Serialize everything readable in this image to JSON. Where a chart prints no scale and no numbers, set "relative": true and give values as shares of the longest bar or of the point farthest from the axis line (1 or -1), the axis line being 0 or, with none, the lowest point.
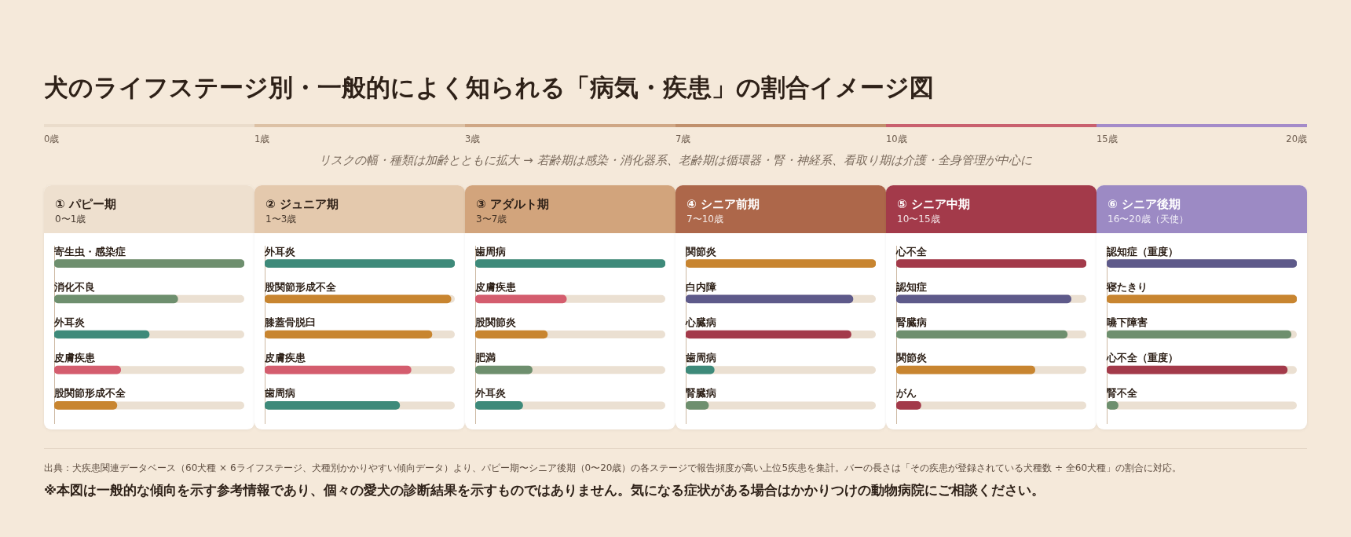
{
  "chart_data": [
    {
      "type": "other",
      "title": "犬のライフステージ別・一般的によく知られる「病気・疾患」の割合イメージ図",
      "subtitle": "リスクの幅・種類は加齢とともに拡大 → 若齢期は感染・消化器系、老齢期は循環器・腎・神経系、看取り期は介護・全身管理が中心に",
      "categories": [
        "0歳",
        "1歳",
        "3歳",
        "7歳",
        "10歳",
        "15歳",
        "20歳"
      ],
      "colors": [
        "#eadccb",
        "#dcc1a5",
        "#cfa785",
        "#c0906c",
        "#c9606e",
        "#a48bc9"
      ],
      "annotations": [
        "出典：犬疾患関連データベース（60犬種 × 6ライフステージ、犬種別かかりやすい傾向データ）より、パピー期〜シニア後期（0〜20歳）の各ステージで報告頻度が高い上位5疾患を集計。バーの長さは「その疾患が登録されている犬種数 ÷ 全60犬種」の割合に対応。",
        "※本図は一般的な傾向を示す参考情報であり、個々の愛犬の診断結果を示すものではありません。気になる症状がある場合はかかりつけの動物病院にご相談ください。"
      ]
    },
    {
      "type": "bar",
      "orientation": "horizontal",
      "relative": true,
      "title": "① パピー期",
      "subtitle": "0〜1歳",
      "categories": [
        "寄生虫・感染症",
        "消化不良",
        "外耳炎",
        "皮膚疾患",
        "股関節形成不全"
      ],
      "values": [
        1,
        0.65,
        0.5,
        0.35,
        0.33
      ],
      "colors": [
        "#6e8f6e",
        "#6e8f6e",
        "#3e8a7a",
        "#d45d6e",
        "#c88530"
      ]
    },
    {
      "type": "bar",
      "orientation": "horizontal",
      "relative": true,
      "title": "② ジュニア期",
      "subtitle": "1〜3歳",
      "categories": [
        "外耳炎",
        "股関節形成不全",
        "膝蓋骨脱臼",
        "皮膚疾患",
        "歯周病"
      ],
      "values": [
        1,
        0.98,
        0.88,
        0.77,
        0.71
      ],
      "colors": [
        "#3e8a7a",
        "#c88530",
        "#c88530",
        "#d45d6e",
        "#3e8a7a"
      ]
    },
    {
      "type": "bar",
      "orientation": "horizontal",
      "relative": true,
      "title": "③ アダルト期",
      "subtitle": "3〜7歳",
      "categories": [
        "歯周病",
        "皮膚疾患",
        "股関節炎",
        "肥満",
        "外耳炎"
      ],
      "values": [
        1,
        0.48,
        0.38,
        0.3,
        0.25
      ],
      "colors": [
        "#3e8a7a",
        "#d45d6e",
        "#c88530",
        "#6e8f6e",
        "#3e8a7a"
      ]
    },
    {
      "type": "bar",
      "orientation": "horizontal",
      "relative": true,
      "title": "④ シニア前期",
      "subtitle": "7〜10歳",
      "categories": [
        "関節炎",
        "白内障",
        "心臓病",
        "歯周病",
        "腎臓病"
      ],
      "values": [
        1,
        0.88,
        0.87,
        0.15,
        0.12
      ],
      "colors": [
        "#c88530",
        "#5e5a8a",
        "#a33a4a",
        "#3e8a7a",
        "#6e8f6e"
      ]
    },
    {
      "type": "bar",
      "orientation": "horizontal",
      "relative": true,
      "title": "⑤ シニア中期",
      "subtitle": "10〜15歳",
      "categories": [
        "心不全",
        "認知症",
        "腎臓病",
        "関節炎",
        "がん"
      ],
      "values": [
        1,
        0.92,
        0.9,
        0.73,
        0.13
      ],
      "colors": [
        "#a33a4a",
        "#5e5a8a",
        "#6e8f6e",
        "#c88530",
        "#a33a4a"
      ]
    },
    {
      "type": "bar",
      "orientation": "horizontal",
      "relative": true,
      "title": "⑥ シニア後期",
      "subtitle": "16〜20歳（天使）",
      "categories": [
        "認知症（重度）",
        "寝たきり",
        "嚥下障害",
        "心不全（重度）",
        "腎不全"
      ],
      "values": [
        1,
        1,
        0.97,
        0.95,
        0.06
      ],
      "colors": [
        "#5e5a8a",
        "#c88530",
        "#6e8f6e",
        "#a33a4a",
        "#6e8f6e"
      ]
    }
  ]
}
